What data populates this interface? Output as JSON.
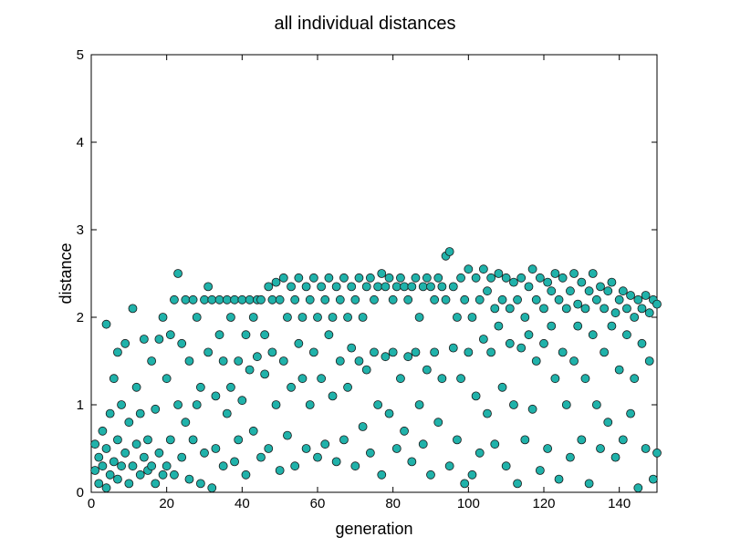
{
  "chart_data": {
    "type": "scatter",
    "title": "all individual distances",
    "xlabel": "generation",
    "ylabel": "distance",
    "xlim": [
      0,
      150
    ],
    "ylim": [
      0,
      5
    ],
    "xticks": [
      0,
      20,
      40,
      60,
      80,
      100,
      120,
      140
    ],
    "yticks": [
      0,
      1,
      2,
      3,
      4,
      5
    ],
    "grid": false,
    "marker": {
      "fill": "#20b2aa",
      "edge": "#1a1a1a"
    },
    "series": [
      {
        "points": [
          [
            1,
            0.25
          ],
          [
            1,
            0.55
          ],
          [
            2,
            0.1
          ],
          [
            2,
            0.4
          ],
          [
            3,
            0.3
          ],
          [
            3,
            0.7
          ],
          [
            4,
            0.05
          ],
          [
            4,
            0.5
          ],
          [
            4,
            1.92
          ],
          [
            5,
            0.2
          ],
          [
            5,
            0.9
          ],
          [
            6,
            0.35
          ],
          [
            6,
            1.3
          ],
          [
            7,
            0.15
          ],
          [
            7,
            0.6
          ],
          [
            7,
            1.6
          ],
          [
            8,
            0.3
          ],
          [
            8,
            1.0
          ],
          [
            9,
            0.45
          ],
          [
            9,
            1.7
          ],
          [
            10,
            0.1
          ],
          [
            10,
            0.8
          ],
          [
            11,
            0.3
          ],
          [
            11,
            2.1
          ],
          [
            12,
            0.55
          ],
          [
            12,
            1.2
          ],
          [
            13,
            0.2
          ],
          [
            13,
            0.9
          ],
          [
            14,
            0.4
          ],
          [
            14,
            1.75
          ],
          [
            15,
            0.25
          ],
          [
            15,
            0.6
          ],
          [
            16,
            0.3
          ],
          [
            16,
            1.5
          ],
          [
            17,
            0.1
          ],
          [
            17,
            0.95
          ],
          [
            18,
            0.45
          ],
          [
            18,
            1.75
          ],
          [
            19,
            0.2
          ],
          [
            19,
            2.0
          ],
          [
            20,
            0.3
          ],
          [
            20,
            1.3
          ],
          [
            21,
            0.6
          ],
          [
            21,
            1.8
          ],
          [
            22,
            0.2
          ],
          [
            22,
            2.2
          ],
          [
            23,
            2.5
          ],
          [
            23,
            1.0
          ],
          [
            24,
            0.4
          ],
          [
            24,
            1.7
          ],
          [
            25,
            2.2
          ],
          [
            25,
            0.8
          ],
          [
            26,
            0.15
          ],
          [
            26,
            1.5
          ],
          [
            27,
            2.2
          ],
          [
            27,
            0.6
          ],
          [
            28,
            1.0
          ],
          [
            28,
            2.0
          ],
          [
            29,
            0.1
          ],
          [
            29,
            1.2
          ],
          [
            30,
            2.2
          ],
          [
            30,
            0.45
          ],
          [
            31,
            2.35
          ],
          [
            31,
            1.6
          ],
          [
            32,
            0.05
          ],
          [
            32,
            2.2
          ],
          [
            33,
            1.1
          ],
          [
            33,
            0.5
          ],
          [
            34,
            2.2
          ],
          [
            34,
            1.8
          ],
          [
            35,
            0.3
          ],
          [
            35,
            1.5
          ],
          [
            36,
            2.2
          ],
          [
            36,
            0.9
          ],
          [
            37,
            2.0
          ],
          [
            37,
            1.2
          ],
          [
            38,
            0.35
          ],
          [
            38,
            2.2
          ],
          [
            39,
            1.5
          ],
          [
            39,
            0.6
          ],
          [
            40,
            2.2
          ],
          [
            40,
            1.05
          ],
          [
            41,
            1.8
          ],
          [
            41,
            0.2
          ],
          [
            42,
            2.2
          ],
          [
            42,
            1.4
          ],
          [
            43,
            2.0
          ],
          [
            43,
            0.7
          ],
          [
            44,
            2.2
          ],
          [
            44,
            1.55
          ],
          [
            45,
            0.4
          ],
          [
            45,
            2.2
          ],
          [
            46,
            1.35
          ],
          [
            46,
            1.8
          ],
          [
            47,
            2.35
          ],
          [
            47,
            0.5
          ],
          [
            48,
            2.2
          ],
          [
            48,
            1.6
          ],
          [
            49,
            1.0
          ],
          [
            49,
            2.4
          ],
          [
            50,
            2.2
          ],
          [
            50,
            0.25
          ],
          [
            51,
            2.45
          ],
          [
            51,
            1.5
          ],
          [
            52,
            2.0
          ],
          [
            52,
            0.65
          ],
          [
            53,
            2.35
          ],
          [
            53,
            1.2
          ],
          [
            54,
            2.2
          ],
          [
            54,
            0.3
          ],
          [
            55,
            2.45
          ],
          [
            55,
            1.7
          ],
          [
            56,
            2.0
          ],
          [
            56,
            1.3
          ],
          [
            57,
            2.35
          ],
          [
            57,
            0.5
          ],
          [
            58,
            2.2
          ],
          [
            58,
            1.0
          ],
          [
            59,
            2.45
          ],
          [
            59,
            1.6
          ],
          [
            60,
            2.0
          ],
          [
            60,
            0.4
          ],
          [
            61,
            2.35
          ],
          [
            61,
            1.3
          ],
          [
            62,
            2.2
          ],
          [
            62,
            0.55
          ],
          [
            63,
            2.45
          ],
          [
            63,
            1.8
          ],
          [
            64,
            2.0
          ],
          [
            64,
            1.1
          ],
          [
            65,
            2.35
          ],
          [
            65,
            0.35
          ],
          [
            66,
            2.2
          ],
          [
            66,
            1.5
          ],
          [
            67,
            2.45
          ],
          [
            67,
            0.6
          ],
          [
            68,
            2.0
          ],
          [
            68,
            1.2
          ],
          [
            69,
            2.35
          ],
          [
            69,
            1.65
          ],
          [
            70,
            2.2
          ],
          [
            70,
            0.3
          ],
          [
            71,
            2.45
          ],
          [
            71,
            1.5
          ],
          [
            72,
            2.0
          ],
          [
            72,
            0.75
          ],
          [
            73,
            2.35
          ],
          [
            73,
            1.4
          ],
          [
            74,
            2.45
          ],
          [
            74,
            0.45
          ],
          [
            75,
            2.2
          ],
          [
            75,
            1.6
          ],
          [
            76,
            2.35
          ],
          [
            76,
            1.0
          ],
          [
            77,
            2.5
          ],
          [
            77,
            0.2
          ],
          [
            78,
            2.35
          ],
          [
            78,
            1.55
          ],
          [
            79,
            2.45
          ],
          [
            79,
            0.9
          ],
          [
            80,
            2.2
          ],
          [
            80,
            1.6
          ],
          [
            81,
            2.35
          ],
          [
            81,
            0.5
          ],
          [
            82,
            2.45
          ],
          [
            82,
            1.3
          ],
          [
            83,
            2.35
          ],
          [
            83,
            0.7
          ],
          [
            84,
            2.2
          ],
          [
            84,
            1.55
          ],
          [
            85,
            2.35
          ],
          [
            85,
            0.35
          ],
          [
            86,
            2.45
          ],
          [
            86,
            1.6
          ],
          [
            87,
            2.0
          ],
          [
            87,
            1.0
          ],
          [
            88,
            2.35
          ],
          [
            88,
            0.55
          ],
          [
            89,
            2.45
          ],
          [
            89,
            1.4
          ],
          [
            90,
            2.35
          ],
          [
            90,
            0.2
          ],
          [
            91,
            2.2
          ],
          [
            91,
            1.6
          ],
          [
            92,
            2.45
          ],
          [
            92,
            0.8
          ],
          [
            93,
            2.35
          ],
          [
            93,
            1.3
          ],
          [
            94,
            2.2
          ],
          [
            94,
            2.7
          ],
          [
            95,
            2.75
          ],
          [
            95,
            0.3
          ],
          [
            96,
            2.35
          ],
          [
            96,
            1.65
          ],
          [
            97,
            2.0
          ],
          [
            97,
            0.6
          ],
          [
            98,
            2.45
          ],
          [
            98,
            1.3
          ],
          [
            99,
            2.2
          ],
          [
            99,
            0.1
          ],
          [
            100,
            2.55
          ],
          [
            100,
            1.6
          ],
          [
            101,
            2.0
          ],
          [
            101,
            0.2
          ],
          [
            102,
            2.45
          ],
          [
            102,
            1.1
          ],
          [
            103,
            2.2
          ],
          [
            103,
            0.45
          ],
          [
            104,
            2.55
          ],
          [
            104,
            1.75
          ],
          [
            105,
            2.3
          ],
          [
            105,
            0.9
          ],
          [
            106,
            2.45
          ],
          [
            106,
            1.6
          ],
          [
            107,
            2.1
          ],
          [
            107,
            0.55
          ],
          [
            108,
            2.5
          ],
          [
            108,
            1.9
          ],
          [
            109,
            2.2
          ],
          [
            109,
            1.2
          ],
          [
            110,
            2.45
          ],
          [
            110,
            0.3
          ],
          [
            111,
            2.1
          ],
          [
            111,
            1.7
          ],
          [
            112,
            2.4
          ],
          [
            112,
            1.0
          ],
          [
            113,
            2.2
          ],
          [
            113,
            0.1
          ],
          [
            114,
            2.45
          ],
          [
            114,
            1.65
          ],
          [
            115,
            2.0
          ],
          [
            115,
            0.6
          ],
          [
            116,
            2.35
          ],
          [
            116,
            1.8
          ],
          [
            117,
            2.55
          ],
          [
            117,
            0.95
          ],
          [
            118,
            2.2
          ],
          [
            118,
            1.5
          ],
          [
            119,
            2.45
          ],
          [
            119,
            0.25
          ],
          [
            120,
            2.1
          ],
          [
            120,
            1.7
          ],
          [
            121,
            2.4
          ],
          [
            121,
            0.5
          ],
          [
            122,
            2.3
          ],
          [
            122,
            1.9
          ],
          [
            123,
            2.5
          ],
          [
            123,
            1.3
          ],
          [
            124,
            2.2
          ],
          [
            124,
            0.15
          ],
          [
            125,
            2.45
          ],
          [
            125,
            1.6
          ],
          [
            126,
            2.1
          ],
          [
            126,
            1.0
          ],
          [
            127,
            2.3
          ],
          [
            127,
            0.4
          ],
          [
            128,
            2.5
          ],
          [
            128,
            1.5
          ],
          [
            129,
            2.15
          ],
          [
            129,
            1.9
          ],
          [
            130,
            2.4
          ],
          [
            130,
            0.6
          ],
          [
            131,
            2.1
          ],
          [
            131,
            1.3
          ],
          [
            132,
            2.3
          ],
          [
            132,
            0.1
          ],
          [
            133,
            2.5
          ],
          [
            133,
            1.8
          ],
          [
            134,
            2.2
          ],
          [
            134,
            1.0
          ],
          [
            135,
            2.35
          ],
          [
            135,
            0.5
          ],
          [
            136,
            2.1
          ],
          [
            136,
            1.6
          ],
          [
            137,
            2.3
          ],
          [
            137,
            0.8
          ],
          [
            138,
            2.4
          ],
          [
            138,
            1.9
          ],
          [
            139,
            2.05
          ],
          [
            139,
            0.4
          ],
          [
            140,
            2.2
          ],
          [
            140,
            1.4
          ],
          [
            141,
            2.3
          ],
          [
            141,
            0.6
          ],
          [
            142,
            2.1
          ],
          [
            142,
            1.8
          ],
          [
            143,
            2.25
          ],
          [
            143,
            0.9
          ],
          [
            144,
            2.0
          ],
          [
            144,
            1.3
          ],
          [
            145,
            2.2
          ],
          [
            145,
            0.05
          ],
          [
            146,
            2.1
          ],
          [
            146,
            1.7
          ],
          [
            147,
            2.25
          ],
          [
            147,
            0.5
          ],
          [
            148,
            2.05
          ],
          [
            148,
            1.5
          ],
          [
            149,
            2.2
          ],
          [
            149,
            0.15
          ],
          [
            150,
            2.15
          ],
          [
            150,
            0.45
          ]
        ]
      }
    ]
  }
}
